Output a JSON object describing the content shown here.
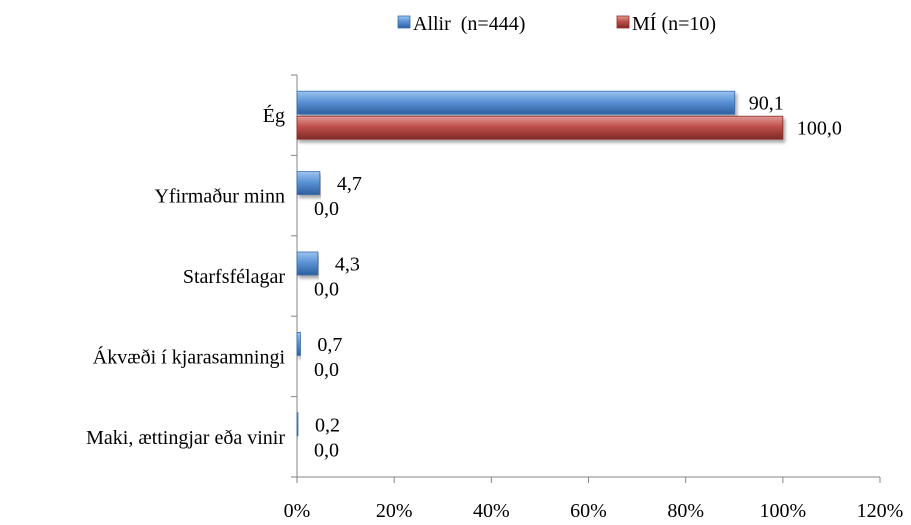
{
  "chart_data": {
    "type": "bar",
    "orientation": "horizontal",
    "categories": [
      "Ég",
      "Yfirmaður minn",
      "Starfsfélagar",
      "Ákvæði í kjarasamningi",
      "Maki, ættingjar eða vinir"
    ],
    "series": [
      {
        "name": "Allir  (n=444)",
        "values": [
          90.1,
          4.7,
          4.3,
          0.7,
          0.2
        ],
        "labels": [
          "90,1",
          "4,7",
          "4,3",
          "0,7",
          "0,2"
        ],
        "color": "#4f86c6"
      },
      {
        "name": "MÍ (n=10)",
        "values": [
          100.0,
          0.0,
          0.0,
          0.0,
          0.0
        ],
        "labels": [
          "100,0",
          "0,0",
          "0,0",
          "0,0",
          "0,0"
        ],
        "color": "#b84a47"
      }
    ],
    "xlim": [
      0,
      120
    ],
    "xticks": [
      0,
      20,
      40,
      60,
      80,
      100,
      120
    ],
    "xtick_labels": [
      "0%",
      "20%",
      "40%",
      "60%",
      "80%",
      "100%",
      "120%"
    ],
    "legend_position": "top",
    "grid": false
  }
}
